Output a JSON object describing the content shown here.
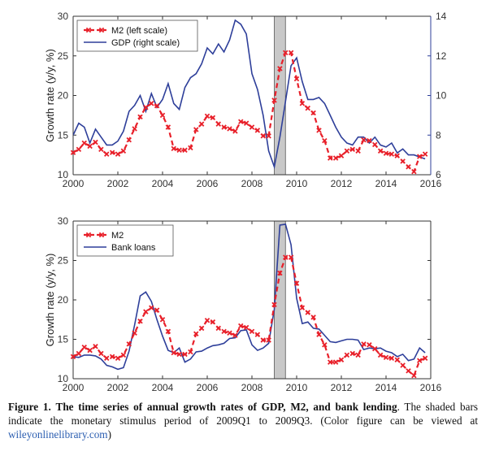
{
  "chart_data": [
    {
      "type": "line",
      "x_range": [
        2000,
        2016
      ],
      "x_ticks": [
        "2000",
        "2002",
        "2004",
        "2006",
        "2008",
        "2010",
        "2012",
        "2014",
        "2016"
      ],
      "ylabel_left": "Growth rate (y/y, %)",
      "ylim_left": [
        10,
        30
      ],
      "yticks_left": [
        "10",
        "15",
        "20",
        "25",
        "30"
      ],
      "ylim_right": [
        6,
        14
      ],
      "yticks_right": [
        "6",
        "8",
        "10",
        "12",
        "14"
      ],
      "shaded_period": [
        2009.0,
        2009.5
      ],
      "legend_position": "top-left",
      "grid": false,
      "colors": {
        "m2": "#e8202a",
        "second": "#2e3f9a",
        "shade": "#c8c8c8"
      },
      "series": [
        {
          "name": "M2 (left scale)",
          "axis": "left",
          "style": "dashed-x-markers",
          "x": [
            2000.0,
            2000.25,
            2000.5,
            2000.75,
            2001.0,
            2001.25,
            2001.5,
            2001.75,
            2002.0,
            2002.25,
            2002.5,
            2002.75,
            2003.0,
            2003.25,
            2003.5,
            2003.75,
            2004.0,
            2004.25,
            2004.5,
            2004.75,
            2005.0,
            2005.25,
            2005.5,
            2005.75,
            2006.0,
            2006.25,
            2006.5,
            2006.75,
            2007.0,
            2007.25,
            2007.5,
            2007.75,
            2008.0,
            2008.25,
            2008.5,
            2008.75,
            2009.0,
            2009.25,
            2009.5,
            2009.75,
            2010.0,
            2010.25,
            2010.5,
            2010.75,
            2011.0,
            2011.25,
            2011.5,
            2011.75,
            2012.0,
            2012.25,
            2012.5,
            2012.75,
            2013.0,
            2013.25,
            2013.5,
            2013.75,
            2014.0,
            2014.25,
            2014.5,
            2014.75,
            2015.0,
            2015.25,
            2015.5,
            2015.75
          ],
          "values": [
            12.8,
            13.2,
            14.0,
            13.6,
            14.1,
            13.2,
            12.6,
            12.8,
            12.6,
            13.0,
            14.4,
            15.8,
            17.3,
            18.5,
            19.0,
            18.7,
            17.5,
            16.0,
            13.3,
            13.1,
            13.1,
            13.4,
            15.7,
            16.4,
            17.4,
            17.2,
            16.4,
            16.0,
            15.8,
            15.5,
            16.7,
            16.5,
            16.0,
            15.6,
            14.9,
            14.9,
            19.4,
            23.4,
            25.4,
            25.4,
            22.1,
            19.0,
            18.4,
            17.8,
            15.6,
            14.3,
            12.1,
            12.1,
            12.4,
            13.0,
            13.2,
            13.0,
            14.4,
            14.3,
            13.8,
            13.0,
            12.7,
            12.6,
            12.4,
            11.7,
            11.0,
            10.4,
            12.3,
            12.6
          ]
        },
        {
          "name": "GDP (right scale)",
          "axis": "right",
          "style": "solid",
          "x": [
            2000.0,
            2000.25,
            2000.5,
            2000.75,
            2001.0,
            2001.25,
            2001.5,
            2001.75,
            2002.0,
            2002.25,
            2002.5,
            2002.75,
            2003.0,
            2003.25,
            2003.5,
            2003.75,
            2004.0,
            2004.25,
            2004.5,
            2004.75,
            2005.0,
            2005.25,
            2005.5,
            2005.75,
            2006.0,
            2006.25,
            2006.5,
            2006.75,
            2007.0,
            2007.25,
            2007.5,
            2007.75,
            2008.0,
            2008.25,
            2008.5,
            2008.75,
            2009.0,
            2009.25,
            2009.5,
            2009.75,
            2010.0,
            2010.25,
            2010.5,
            2010.75,
            2011.0,
            2011.25,
            2011.5,
            2011.75,
            2012.0,
            2012.25,
            2012.5,
            2012.75,
            2013.0,
            2013.25,
            2013.5,
            2013.75,
            2014.0,
            2014.25,
            2014.5,
            2014.75,
            2015.0,
            2015.25,
            2015.5,
            2015.75
          ],
          "values": [
            8.0,
            8.6,
            8.4,
            7.6,
            8.3,
            7.9,
            7.5,
            7.5,
            7.7,
            8.2,
            9.2,
            9.5,
            10.0,
            9.2,
            10.1,
            9.4,
            9.8,
            10.6,
            9.6,
            9.3,
            10.4,
            10.9,
            11.1,
            11.6,
            12.4,
            12.1,
            12.6,
            12.2,
            12.8,
            13.8,
            13.6,
            13.1,
            11.1,
            10.3,
            9.0,
            7.2,
            6.4,
            7.9,
            9.7,
            11.5,
            11.9,
            10.7,
            9.8,
            9.8,
            9.9,
            9.6,
            9.0,
            8.4,
            7.9,
            7.6,
            7.5,
            7.9,
            7.9,
            7.6,
            7.9,
            7.5,
            7.4,
            7.6,
            7.1,
            7.3,
            7.0,
            7.0,
            6.9,
            6.8
          ]
        }
      ]
    },
    {
      "type": "line",
      "x_range": [
        2000,
        2016
      ],
      "x_ticks": [
        "2000",
        "2002",
        "2004",
        "2006",
        "2008",
        "2010",
        "2012",
        "2014",
        "2016"
      ],
      "ylabel_left": "Growth rate (y/y, %)",
      "ylim_left": [
        10,
        30
      ],
      "yticks_left": [
        "10",
        "15",
        "20",
        "25",
        "30"
      ],
      "shaded_period": [
        2009.0,
        2009.5
      ],
      "legend_position": "top-left",
      "grid": false,
      "colors": {
        "m2": "#e8202a",
        "second": "#2e3f9a",
        "shade": "#c8c8c8"
      },
      "series": [
        {
          "name": "M2",
          "axis": "left",
          "style": "dashed-x-markers",
          "x": [
            2000.0,
            2000.25,
            2000.5,
            2000.75,
            2001.0,
            2001.25,
            2001.5,
            2001.75,
            2002.0,
            2002.25,
            2002.5,
            2002.75,
            2003.0,
            2003.25,
            2003.5,
            2003.75,
            2004.0,
            2004.25,
            2004.5,
            2004.75,
            2005.0,
            2005.25,
            2005.5,
            2005.75,
            2006.0,
            2006.25,
            2006.5,
            2006.75,
            2007.0,
            2007.25,
            2007.5,
            2007.75,
            2008.0,
            2008.25,
            2008.5,
            2008.75,
            2009.0,
            2009.25,
            2009.5,
            2009.75,
            2010.0,
            2010.25,
            2010.5,
            2010.75,
            2011.0,
            2011.25,
            2011.5,
            2011.75,
            2012.0,
            2012.25,
            2012.5,
            2012.75,
            2013.0,
            2013.25,
            2013.5,
            2013.75,
            2014.0,
            2014.25,
            2014.5,
            2014.75,
            2015.0,
            2015.25,
            2015.5,
            2015.75
          ],
          "values": [
            12.8,
            13.2,
            14.0,
            13.6,
            14.1,
            13.2,
            12.6,
            12.8,
            12.6,
            13.0,
            14.4,
            15.8,
            17.3,
            18.5,
            19.0,
            18.7,
            17.5,
            16.0,
            13.3,
            13.1,
            13.1,
            13.4,
            15.7,
            16.4,
            17.4,
            17.2,
            16.4,
            16.0,
            15.8,
            15.5,
            16.7,
            16.5,
            16.0,
            15.6,
            14.9,
            14.9,
            19.4,
            23.4,
            25.4,
            25.4,
            22.1,
            19.0,
            18.4,
            17.8,
            15.6,
            14.3,
            12.1,
            12.1,
            12.4,
            13.0,
            13.2,
            13.0,
            14.4,
            14.3,
            13.8,
            13.0,
            12.7,
            12.6,
            12.4,
            11.7,
            11.0,
            10.4,
            12.3,
            12.6
          ]
        },
        {
          "name": "Bank loans",
          "axis": "left",
          "style": "solid",
          "x": [
            2000.0,
            2000.25,
            2000.5,
            2000.75,
            2001.0,
            2001.25,
            2001.5,
            2001.75,
            2002.0,
            2002.25,
            2002.5,
            2002.75,
            2003.0,
            2003.25,
            2003.5,
            2003.75,
            2004.0,
            2004.25,
            2004.5,
            2004.75,
            2005.0,
            2005.25,
            2005.5,
            2005.75,
            2006.0,
            2006.25,
            2006.5,
            2006.75,
            2007.0,
            2007.25,
            2007.5,
            2007.75,
            2008.0,
            2008.25,
            2008.5,
            2008.75,
            2009.0,
            2009.25,
            2009.5,
            2009.75,
            2010.0,
            2010.25,
            2010.5,
            2010.75,
            2011.0,
            2011.25,
            2011.5,
            2011.75,
            2012.0,
            2012.25,
            2012.5,
            2012.75,
            2013.0,
            2013.25,
            2013.5,
            2013.75,
            2014.0,
            2014.25,
            2014.5,
            2014.75,
            2015.0,
            2015.25,
            2015.5,
            2015.75
          ],
          "values": [
            12.8,
            12.7,
            13.0,
            13.0,
            12.9,
            12.5,
            11.7,
            11.5,
            11.2,
            11.4,
            13.5,
            16.8,
            20.5,
            21.0,
            19.8,
            17.5,
            15.4,
            13.6,
            13.3,
            13.9,
            12.1,
            12.5,
            13.4,
            13.5,
            13.9,
            14.2,
            14.3,
            14.5,
            15.1,
            15.2,
            16.1,
            16.2,
            14.3,
            13.6,
            13.9,
            14.5,
            18.8,
            29.5,
            29.6,
            27.0,
            20.2,
            17.0,
            17.2,
            16.4,
            16.3,
            15.5,
            14.7,
            14.6,
            14.8,
            15.0,
            15.0,
            14.9,
            13.7,
            13.9,
            13.8,
            13.9,
            13.5,
            13.3,
            12.8,
            13.1,
            12.3,
            12.5,
            13.9,
            13.3
          ]
        }
      ]
    }
  ],
  "panels": [
    {
      "legend": [
        "M2 (left scale)",
        "GDP (right scale)"
      ]
    },
    {
      "legend": [
        "M2",
        "Bank loans"
      ]
    }
  ],
  "caption": {
    "label": "Figure 1.",
    "title": "The time series of annual growth rates of GDP, M2, and bank lending",
    "body": ". The shaded bars indicate the monetary stimulus period of 2009Q1 to 2009Q3. (Color figure can be viewed at ",
    "link": "wileyonlinelibrary.com",
    "tail": ")"
  }
}
